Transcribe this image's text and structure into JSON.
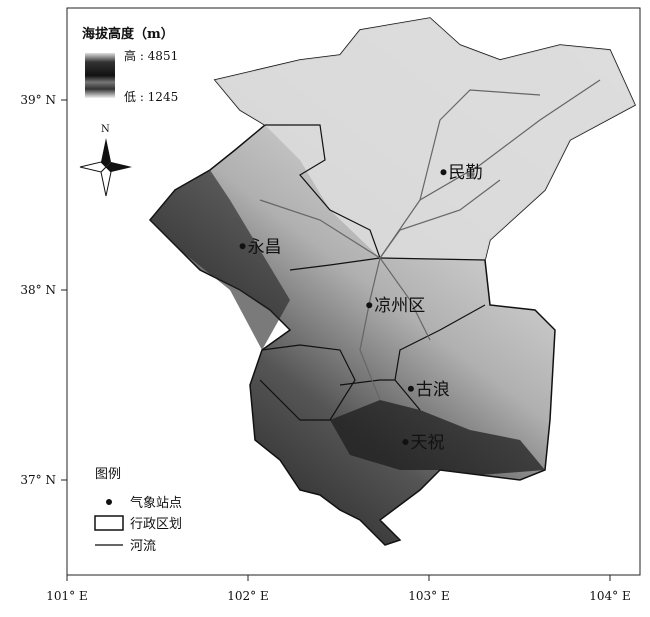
{
  "elevation_legend": {
    "title": "海拔高度（m）",
    "high": "高 : 4851",
    "low": "低 : 1245"
  },
  "north_arrow": {
    "label": "N"
  },
  "stations": [
    {
      "name": "民勤",
      "lon": 103.08,
      "lat": 38.62
    },
    {
      "name": "永昌",
      "lon": 101.97,
      "lat": 38.23
    },
    {
      "name": "凉州区",
      "lon": 102.67,
      "lat": 37.92
    },
    {
      "name": "古浪",
      "lon": 102.9,
      "lat": 37.48
    },
    {
      "name": "天祝",
      "lon": 102.87,
      "lat": 37.2
    }
  ],
  "axes": {
    "x_ticks": [
      "101° E",
      "102° E",
      "103° E",
      "104° E"
    ],
    "y_ticks": [
      "39° N",
      "38° N",
      "37° N"
    ]
  },
  "legend": {
    "title": "图例",
    "items": [
      "气象站点",
      "行政区划",
      "河流"
    ]
  },
  "colors": {
    "boundary": "#111111",
    "river": "#666666",
    "high": "#111111",
    "low": "#eeeeee"
  }
}
